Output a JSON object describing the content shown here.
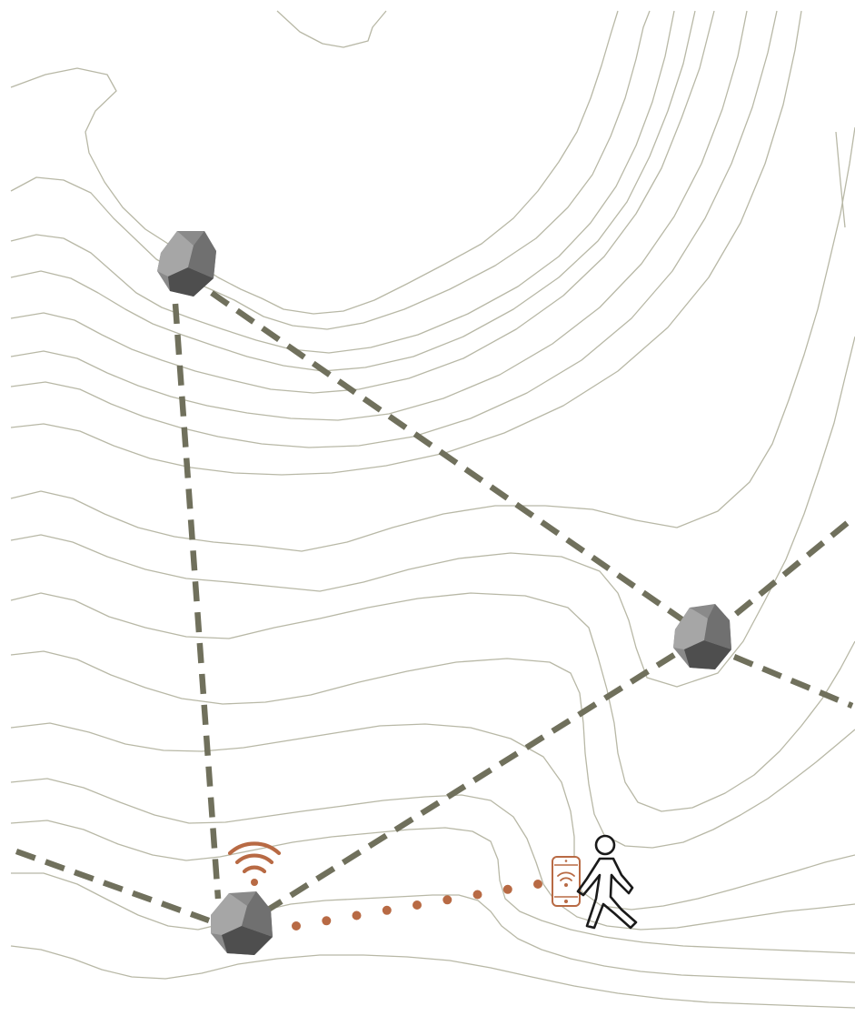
{
  "colors": {
    "background": "#ffffff",
    "contour_line": "#b8b8a6",
    "node_link": "#70705c",
    "signal": "#b86a44",
    "device_rock_light": "#a6a6a6",
    "device_rock_mid": "#8a8a8a",
    "device_rock_dark": "#4e4e4e",
    "walker": "#1a1a1a"
  },
  "diagram": {
    "type": "sensor-network-topographic-map",
    "nodes": [
      {
        "id": "rock-node-north",
        "icon": "rock-sensor-icon"
      },
      {
        "id": "rock-node-east",
        "icon": "rock-sensor-icon"
      },
      {
        "id": "rock-node-south",
        "icon": "rock-sensor-icon",
        "broadcasting": true
      }
    ],
    "links": [
      {
        "from": "rock-node-north",
        "to": "rock-node-south",
        "style": "dashed"
      },
      {
        "from": "rock-node-north",
        "to": "rock-node-east",
        "style": "dashed"
      },
      {
        "from": "rock-node-east",
        "to": "rock-node-south",
        "style": "dashed"
      },
      {
        "from": "rock-node-east",
        "to": "offmap-northeast",
        "style": "dashed"
      },
      {
        "from": "rock-node-east",
        "to": "offmap-southeast",
        "style": "dashed"
      },
      {
        "from": "rock-node-south",
        "to": "offmap-west",
        "style": "dashed"
      },
      {
        "from": "rock-node-south",
        "to": "hiker-phone",
        "style": "dotted-wireless"
      }
    ],
    "user": {
      "icon": "walking-person-icon",
      "device": "smartphone-wifi-icon"
    },
    "signal_icon": "wifi-signal-icon"
  }
}
